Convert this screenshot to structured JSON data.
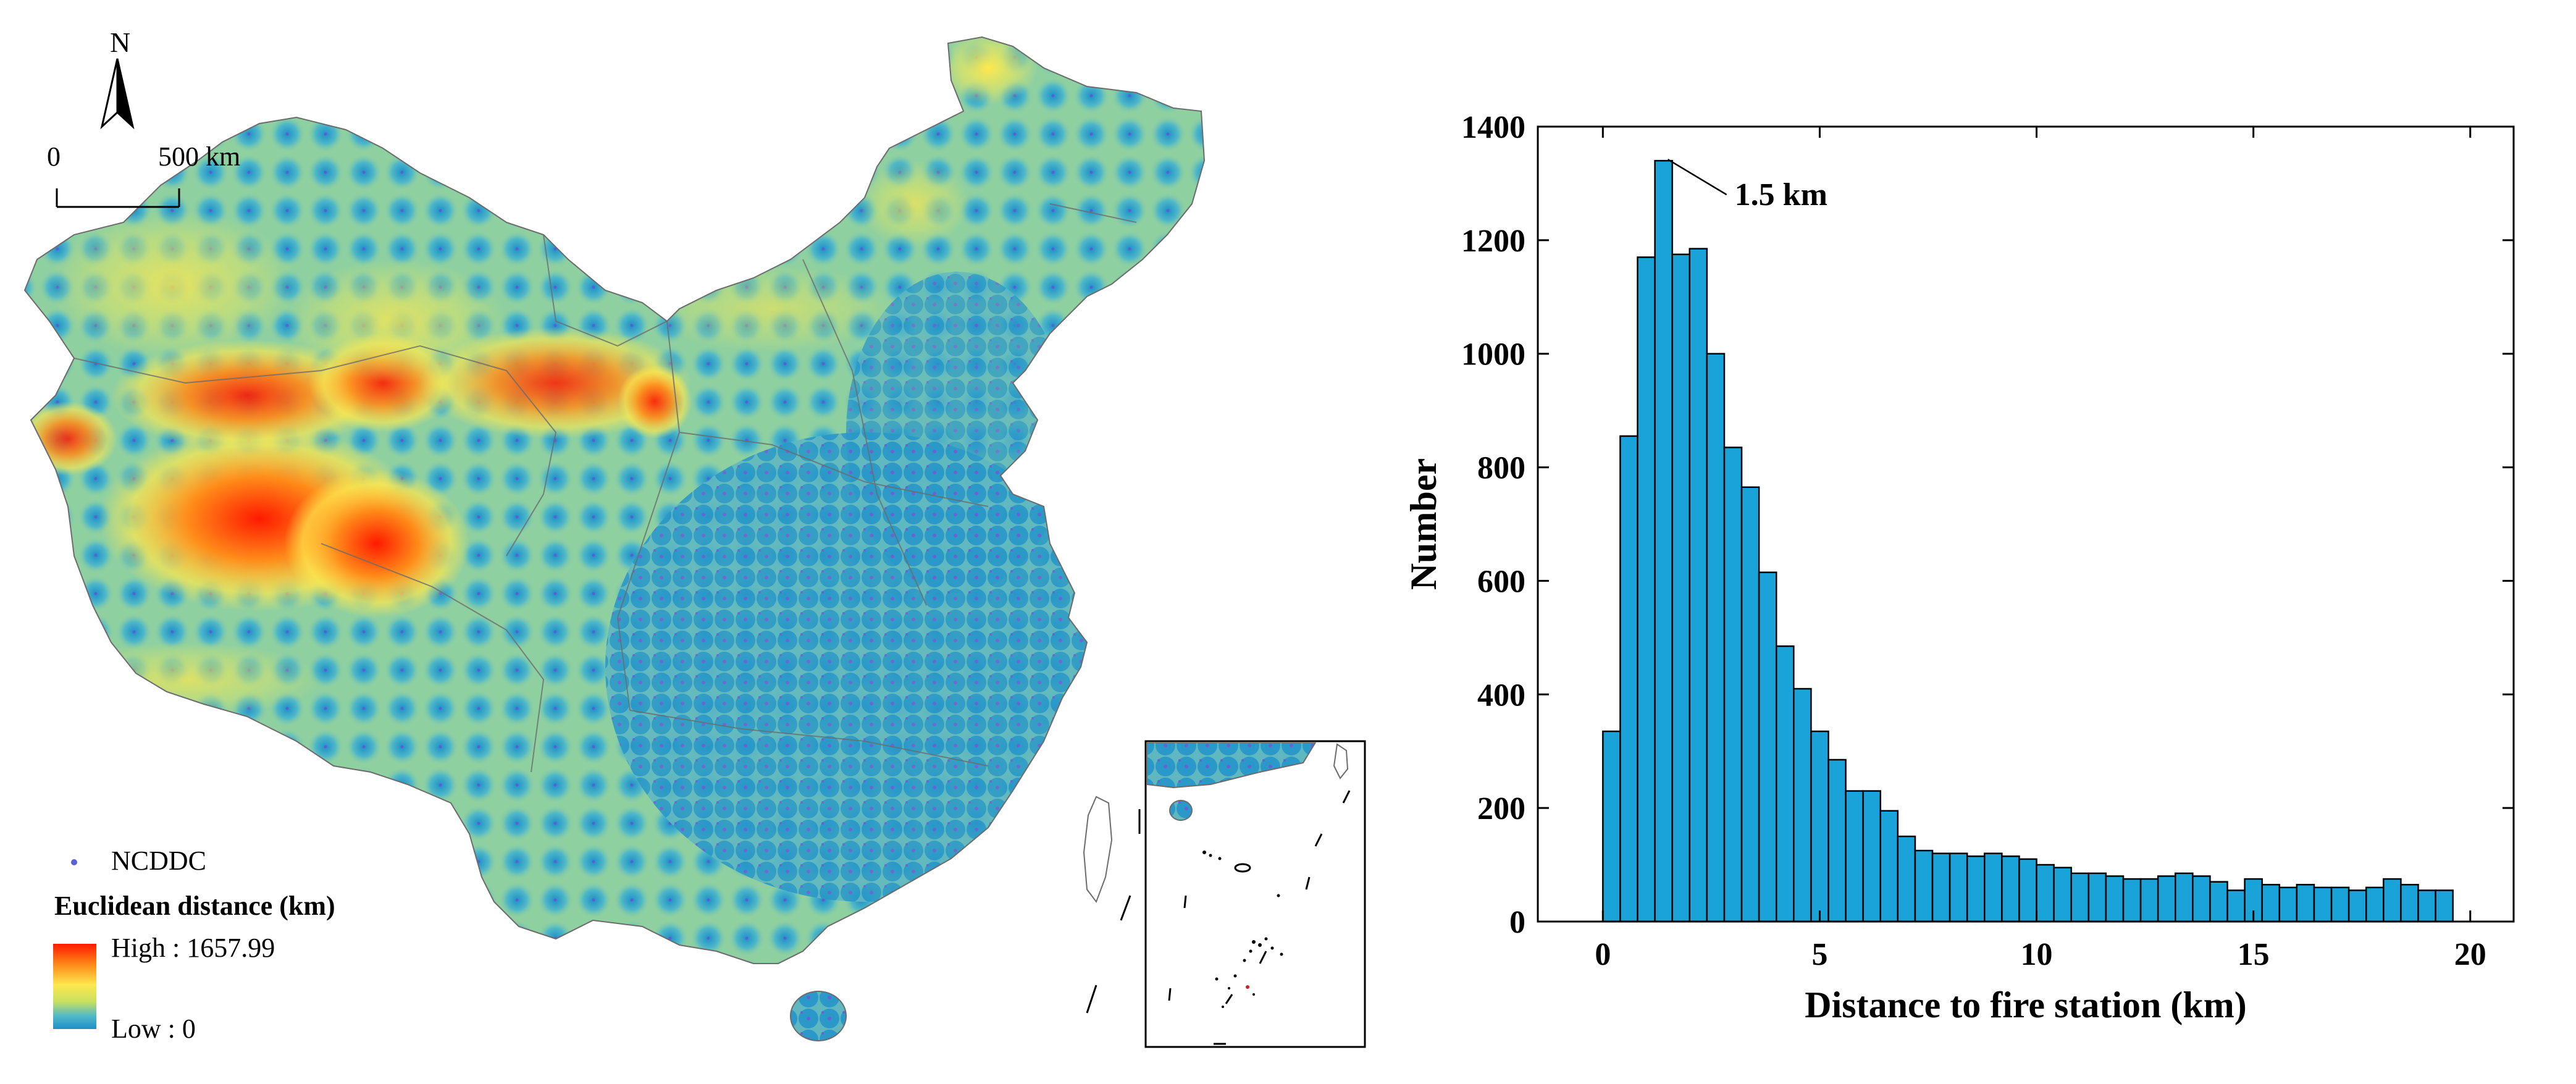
{
  "map": {
    "north_label": "N",
    "scale_left": "0",
    "scale_right": "500 km",
    "legend": {
      "point_label": "NCDDC",
      "point_color": "#5b5fd6",
      "title": "Euclidean distance (km)",
      "high_label": "High : 1657.99",
      "low_label": "Low : 0",
      "ramp_colors": [
        "#ff1a00",
        "#ff8c1a",
        "#ffe84d",
        "#c8e060",
        "#4fb8c8",
        "#1f90c8"
      ]
    }
  },
  "chart_data": {
    "type": "bar",
    "title": "",
    "xlabel": "Distance to fire station (km)",
    "ylabel": "Number",
    "xlim": [
      -1.5,
      21
    ],
    "ylim": [
      0,
      1400
    ],
    "bin_width": 0.4,
    "bin_start": 0,
    "x_ticks": [
      0,
      5,
      10,
      15,
      20
    ],
    "y_ticks": [
      0,
      200,
      400,
      600,
      800,
      1000,
      1200,
      1400
    ],
    "bar_color": "#1aa3d9",
    "values": [
      335,
      855,
      1170,
      1340,
      1175,
      1185,
      1000,
      835,
      765,
      615,
      485,
      410,
      335,
      285,
      230,
      230,
      195,
      150,
      125,
      120,
      120,
      115,
      120,
      115,
      110,
      100,
      95,
      85,
      85,
      80,
      75,
      75,
      80,
      85,
      80,
      70,
      55,
      75,
      65,
      60,
      65,
      60,
      60,
      55,
      60,
      75,
      65,
      55,
      55
    ],
    "annotation": {
      "text": "1.5 km",
      "x": 1.5,
      "y": 1340
    }
  }
}
